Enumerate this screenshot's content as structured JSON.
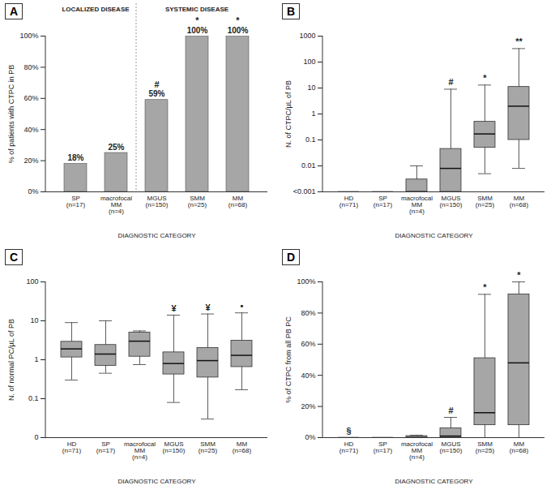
{
  "chart_data": [
    {
      "type": "bar",
      "title": "A",
      "categories": [
        "SP",
        "macrofocal MM",
        "MGUS",
        "SMM",
        "MM"
      ],
      "sample_sizes": [
        "(n=17)",
        "(n=4)",
        "(n=150)",
        "(n=25)",
        "(n=68)"
      ],
      "values": [
        18,
        25,
        59,
        100,
        100
      ],
      "value_labels": [
        "18%",
        "25%",
        "59%",
        "100%",
        "100%"
      ],
      "data_labels": true,
      "annotations": [
        null,
        null,
        "#",
        "*",
        "*"
      ],
      "sections": [
        {
          "label": "LOCALIZED DISEASE",
          "categories": [
            "SP",
            "macrofocal MM"
          ]
        },
        {
          "label": "SYSTEMIC DISEASE",
          "categories": [
            "MGUS",
            "SMM",
            "MM"
          ]
        }
      ],
      "x_label": "DIAGNOSTIC CATEGORY",
      "y_label": "% of patients with CTPC in PB",
      "ylim": [
        0,
        100
      ],
      "yticks": [
        {
          "value": 0,
          "label": "0%"
        },
        {
          "value": 20,
          "label": "20%"
        },
        {
          "value": 40,
          "label": "40%"
        },
        {
          "value": 60,
          "label": "60%"
        },
        {
          "value": 80,
          "label": "80%"
        },
        {
          "value": 100,
          "label": "100%"
        }
      ],
      "color": "#a6a6a6"
    },
    {
      "type": "box",
      "title": "B",
      "log": "y",
      "categories": [
        "HD",
        "SP",
        "macrofocal MM",
        "MGUS",
        "SMM",
        "MM"
      ],
      "sample_sizes": [
        "(n=71)",
        "(n=17)",
        "(n=4)",
        "(n=150)",
        "(n=25)",
        "(n=68)"
      ],
      "stats": {
        "min": [
          0.001,
          0.001,
          0.001,
          0.001,
          0.005,
          0.008
        ],
        "q1": [
          0.001,
          0.001,
          0.001,
          0.001,
          0.05,
          0.1
        ],
        "median": [
          0.001,
          0.001,
          0.001,
          0.008,
          0.17,
          2
        ],
        "q3": [
          0.001,
          0.001,
          0.003,
          0.045,
          0.5,
          11
        ],
        "max": [
          0.001,
          0.001,
          0.01,
          9,
          13,
          330
        ]
      },
      "annotations": [
        null,
        null,
        null,
        "#",
        "*",
        "**"
      ],
      "x_label": "DIAGNOSTIC CATEGORY",
      "y_label": "N. of CTPC/µL of PB",
      "ylim": [
        0.001,
        1000
      ],
      "yticks": [
        {
          "value": 0.001,
          "label": "<0.001"
        },
        0.01,
        0.1,
        1,
        10,
        100,
        1000
      ],
      "color": "#a6a6a6"
    },
    {
      "type": "box",
      "title": "C",
      "log": "y",
      "categories": [
        "HD",
        "SP",
        "macrofocal MM",
        "MGUS",
        "SMM",
        "MM"
      ],
      "sample_sizes": [
        "(n=71)",
        "(n=17)",
        "(n=4)",
        "(n=150)",
        "(n=25)",
        "(n=68)"
      ],
      "stats": {
        "min": [
          0.3,
          0.45,
          0.75,
          0.08,
          0.03,
          0.17
        ],
        "q1": [
          1.15,
          0.7,
          1.2,
          0.42,
          0.35,
          0.65
        ],
        "median": [
          1.9,
          1.4,
          3,
          0.8,
          0.95,
          1.3
        ],
        "q3": [
          2.9,
          2.4,
          5,
          1.55,
          2,
          3.1
        ],
        "max": [
          9,
          10,
          5.5,
          14,
          15,
          16
        ]
      },
      "annotations": [
        null,
        null,
        null,
        "¥",
        "¥",
        "•"
      ],
      "x_label": "DIAGNOSTIC CATEGORY",
      "y_label": "N. of normal PC/µL of PB",
      "ylim": [
        0.01,
        100
      ],
      "yticks": [
        {
          "value": 0.01,
          "label": "0"
        },
        0.1,
        1,
        10,
        100
      ],
      "color": "#a6a6a6"
    },
    {
      "type": "box",
      "title": "D",
      "categories": [
        "HD",
        "SP",
        "macrofocal MM",
        "MGUS",
        "SMM",
        "MM"
      ],
      "sample_sizes": [
        "(n=71)",
        "(n=17)",
        "(n=4)",
        "(n=150)",
        "(n=25)",
        "(n=68)"
      ],
      "stats": {
        "min": [
          0,
          0,
          0,
          0,
          0,
          0
        ],
        "q1": [
          0,
          0,
          0,
          0,
          8,
          8
        ],
        "median": [
          0,
          0,
          0,
          1,
          16,
          48
        ],
        "q3": [
          0,
          0,
          1,
          6,
          51,
          92
        ],
        "max": [
          0,
          0,
          1.5,
          13,
          92,
          100
        ]
      },
      "annotations": [
        "§",
        null,
        null,
        "#",
        "*",
        "*"
      ],
      "x_label": "DIAGNOSTIC CATEGORY",
      "y_label": "% of CTPC from all PB PC",
      "ylim": [
        0,
        100
      ],
      "yticks": [
        {
          "value": 0,
          "label": "0%"
        },
        {
          "value": 20,
          "label": "20%"
        },
        {
          "value": 40,
          "label": "40%"
        },
        {
          "value": 60,
          "label": "60%"
        },
        {
          "value": 80,
          "label": "80%"
        },
        {
          "value": 100,
          "label": "100%"
        }
      ],
      "color": "#a6a6a6"
    }
  ]
}
